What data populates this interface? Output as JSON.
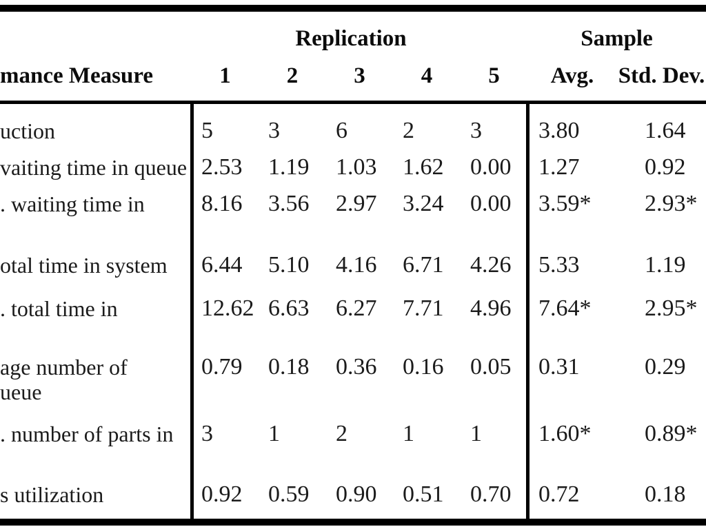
{
  "table": {
    "group_headers": {
      "replication": "Replication",
      "sample": "Sample"
    },
    "column_headers": {
      "measure": "mance Measure",
      "reps": [
        "1",
        "2",
        "3",
        "4",
        "5"
      ],
      "avg": "Avg.",
      "std": "Std. Dev."
    },
    "rows": [
      {
        "label": "uction",
        "values": [
          "5",
          "3",
          "6",
          "2",
          "3"
        ],
        "avg": "3.80",
        "std": "1.64"
      },
      {
        "label": "vaiting time in queue",
        "values": [
          "2.53",
          "1.19",
          "1.03",
          "1.62",
          "0.00"
        ],
        "avg": "1.27",
        "std": "0.92"
      },
      {
        "label": ". waiting time in",
        "values": [
          "8.16",
          "3.56",
          "2.97",
          "3.24",
          "0.00"
        ],
        "avg": "3.59*",
        "std": "2.93*"
      },
      {
        "label": "otal time in system",
        "values": [
          "6.44",
          "5.10",
          "4.16",
          "6.71",
          "4.26"
        ],
        "avg": "5.33",
        "std": "1.19"
      },
      {
        "label": ". total time in",
        "values": [
          "12.62",
          "6.63",
          "6.27",
          "7.71",
          "4.96"
        ],
        "avg": "7.64*",
        "std": "2.95*"
      },
      {
        "label": "age number of",
        "label_line2": "ueue",
        "values": [
          "0.79",
          "0.18",
          "0.36",
          "0.16",
          "0.05"
        ],
        "avg": "0.31",
        "std": "0.29"
      },
      {
        "label": ". number of parts in",
        "values": [
          "3",
          "1",
          "2",
          "1",
          "1"
        ],
        "avg": "1.60*",
        "std": "0.89*"
      },
      {
        "label": "s utilization",
        "values": [
          "0.92",
          "0.59",
          "0.90",
          "0.51",
          "0.70"
        ],
        "avg": "0.72",
        "std": "0.18"
      }
    ]
  }
}
